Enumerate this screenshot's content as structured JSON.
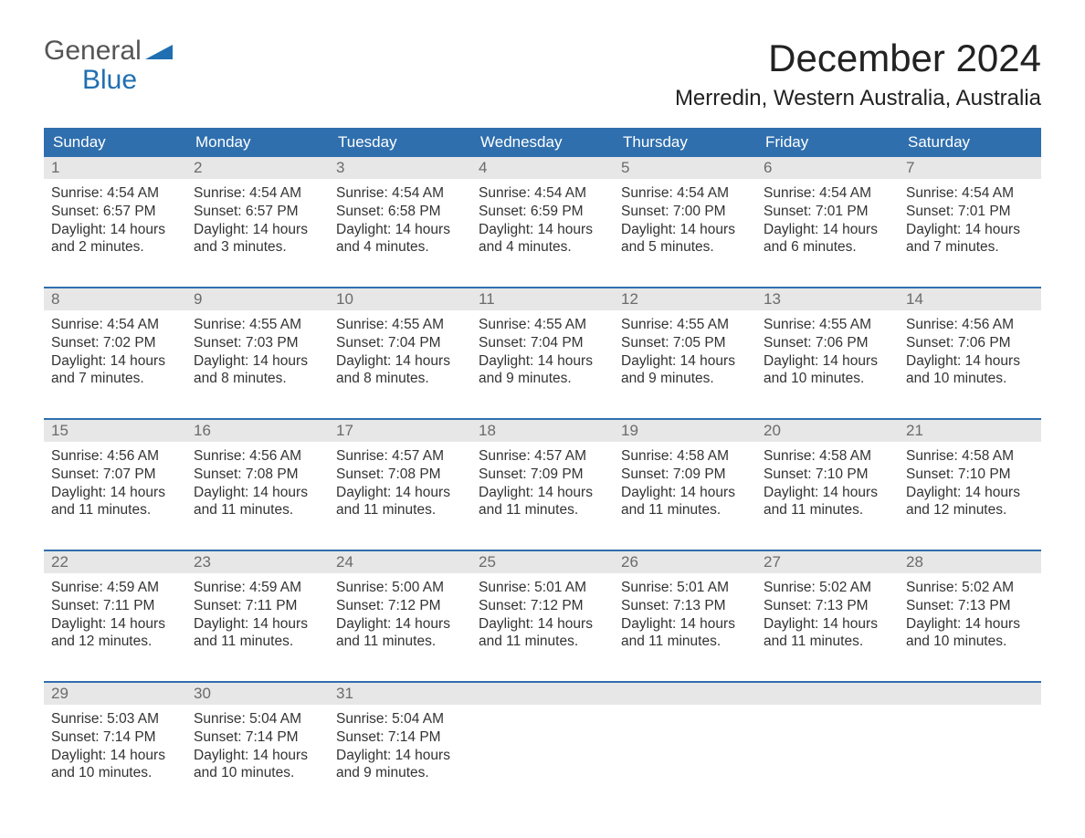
{
  "brand": {
    "line1": "General",
    "line2": "Blue",
    "accent_color": "#1f6fb2"
  },
  "title": "December 2024",
  "location": "Merredin, Western Australia, Australia",
  "colors": {
    "header_bg": "#2f6fae",
    "header_text": "#ffffff",
    "daynum_bg": "#e7e7e7",
    "daynum_text": "#6b6b6b",
    "week_border": "#2f6fae",
    "body_text": "#333333",
    "page_bg": "#ffffff"
  },
  "typography": {
    "title_fontsize": 42,
    "location_fontsize": 24,
    "dow_fontsize": 17,
    "daynum_fontsize": 17,
    "body_fontsize": 15.5
  },
  "days_of_week": [
    "Sunday",
    "Monday",
    "Tuesday",
    "Wednesday",
    "Thursday",
    "Friday",
    "Saturday"
  ],
  "weeks": [
    [
      {
        "n": "1",
        "sunrise": "4:54 AM",
        "sunset": "6:57 PM",
        "daylight": "14 hours and 2 minutes."
      },
      {
        "n": "2",
        "sunrise": "4:54 AM",
        "sunset": "6:57 PM",
        "daylight": "14 hours and 3 minutes."
      },
      {
        "n": "3",
        "sunrise": "4:54 AM",
        "sunset": "6:58 PM",
        "daylight": "14 hours and 4 minutes."
      },
      {
        "n": "4",
        "sunrise": "4:54 AM",
        "sunset": "6:59 PM",
        "daylight": "14 hours and 4 minutes."
      },
      {
        "n": "5",
        "sunrise": "4:54 AM",
        "sunset": "7:00 PM",
        "daylight": "14 hours and 5 minutes."
      },
      {
        "n": "6",
        "sunrise": "4:54 AM",
        "sunset": "7:01 PM",
        "daylight": "14 hours and 6 minutes."
      },
      {
        "n": "7",
        "sunrise": "4:54 AM",
        "sunset": "7:01 PM",
        "daylight": "14 hours and 7 minutes."
      }
    ],
    [
      {
        "n": "8",
        "sunrise": "4:54 AM",
        "sunset": "7:02 PM",
        "daylight": "14 hours and 7 minutes."
      },
      {
        "n": "9",
        "sunrise": "4:55 AM",
        "sunset": "7:03 PM",
        "daylight": "14 hours and 8 minutes."
      },
      {
        "n": "10",
        "sunrise": "4:55 AM",
        "sunset": "7:04 PM",
        "daylight": "14 hours and 8 minutes."
      },
      {
        "n": "11",
        "sunrise": "4:55 AM",
        "sunset": "7:04 PM",
        "daylight": "14 hours and 9 minutes."
      },
      {
        "n": "12",
        "sunrise": "4:55 AM",
        "sunset": "7:05 PM",
        "daylight": "14 hours and 9 minutes."
      },
      {
        "n": "13",
        "sunrise": "4:55 AM",
        "sunset": "7:06 PM",
        "daylight": "14 hours and 10 minutes."
      },
      {
        "n": "14",
        "sunrise": "4:56 AM",
        "sunset": "7:06 PM",
        "daylight": "14 hours and 10 minutes."
      }
    ],
    [
      {
        "n": "15",
        "sunrise": "4:56 AM",
        "sunset": "7:07 PM",
        "daylight": "14 hours and 11 minutes."
      },
      {
        "n": "16",
        "sunrise": "4:56 AM",
        "sunset": "7:08 PM",
        "daylight": "14 hours and 11 minutes."
      },
      {
        "n": "17",
        "sunrise": "4:57 AM",
        "sunset": "7:08 PM",
        "daylight": "14 hours and 11 minutes."
      },
      {
        "n": "18",
        "sunrise": "4:57 AM",
        "sunset": "7:09 PM",
        "daylight": "14 hours and 11 minutes."
      },
      {
        "n": "19",
        "sunrise": "4:58 AM",
        "sunset": "7:09 PM",
        "daylight": "14 hours and 11 minutes."
      },
      {
        "n": "20",
        "sunrise": "4:58 AM",
        "sunset": "7:10 PM",
        "daylight": "14 hours and 11 minutes."
      },
      {
        "n": "21",
        "sunrise": "4:58 AM",
        "sunset": "7:10 PM",
        "daylight": "14 hours and 12 minutes."
      }
    ],
    [
      {
        "n": "22",
        "sunrise": "4:59 AM",
        "sunset": "7:11 PM",
        "daylight": "14 hours and 12 minutes."
      },
      {
        "n": "23",
        "sunrise": "4:59 AM",
        "sunset": "7:11 PM",
        "daylight": "14 hours and 11 minutes."
      },
      {
        "n": "24",
        "sunrise": "5:00 AM",
        "sunset": "7:12 PM",
        "daylight": "14 hours and 11 minutes."
      },
      {
        "n": "25",
        "sunrise": "5:01 AM",
        "sunset": "7:12 PM",
        "daylight": "14 hours and 11 minutes."
      },
      {
        "n": "26",
        "sunrise": "5:01 AM",
        "sunset": "7:13 PM",
        "daylight": "14 hours and 11 minutes."
      },
      {
        "n": "27",
        "sunrise": "5:02 AM",
        "sunset": "7:13 PM",
        "daylight": "14 hours and 11 minutes."
      },
      {
        "n": "28",
        "sunrise": "5:02 AM",
        "sunset": "7:13 PM",
        "daylight": "14 hours and 10 minutes."
      }
    ],
    [
      {
        "n": "29",
        "sunrise": "5:03 AM",
        "sunset": "7:14 PM",
        "daylight": "14 hours and 10 minutes."
      },
      {
        "n": "30",
        "sunrise": "5:04 AM",
        "sunset": "7:14 PM",
        "daylight": "14 hours and 10 minutes."
      },
      {
        "n": "31",
        "sunrise": "5:04 AM",
        "sunset": "7:14 PM",
        "daylight": "14 hours and 9 minutes."
      },
      null,
      null,
      null,
      null
    ]
  ],
  "labels": {
    "sunrise": "Sunrise: ",
    "sunset": "Sunset: ",
    "daylight": "Daylight: "
  }
}
